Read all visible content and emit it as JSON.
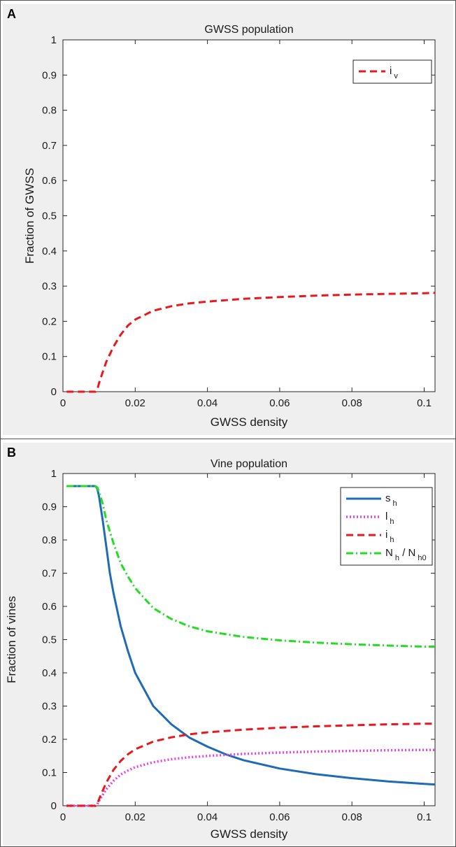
{
  "chart_data": [
    {
      "type": "line",
      "panel_label": "A",
      "title": "GWSS population",
      "xlabel": "GWSS density",
      "ylabel": "Fraction of GWSS",
      "xlim": [
        0,
        0.103
      ],
      "ylim": [
        0,
        1
      ],
      "xticks": [
        "0",
        "0.02",
        "0.04",
        "0.06",
        "0.08",
        "0.1"
      ],
      "yticks": [
        "0",
        "0.1",
        "0.2",
        "0.3",
        "0.4",
        "0.5",
        "0.6",
        "0.7",
        "0.8",
        "0.9",
        "1"
      ],
      "legend_position": "top-right",
      "grid": false,
      "series": [
        {
          "name_main": "i",
          "name_sub": "v",
          "color": "#e8191c",
          "style": "dashed",
          "x": [
            0.001,
            0.009,
            0.0095,
            0.01,
            0.011,
            0.012,
            0.014,
            0.016,
            0.018,
            0.02,
            0.025,
            0.03,
            0.035,
            0.04,
            0.05,
            0.06,
            0.07,
            0.08,
            0.09,
            0.1,
            0.103
          ],
          "y": [
            0,
            0,
            0.005,
            0.025,
            0.055,
            0.085,
            0.128,
            0.162,
            0.188,
            0.205,
            0.23,
            0.243,
            0.251,
            0.256,
            0.264,
            0.269,
            0.273,
            0.276,
            0.278,
            0.28,
            0.281
          ]
        }
      ]
    },
    {
      "type": "line",
      "panel_label": "B",
      "title": "Vine population",
      "xlabel": "GWSS density",
      "ylabel": "Fraction of vines",
      "xlim": [
        0,
        0.103
      ],
      "ylim": [
        0,
        1
      ],
      "xticks": [
        "0",
        "0.02",
        "0.04",
        "0.06",
        "0.08",
        "0.1"
      ],
      "yticks": [
        "0",
        "0.1",
        "0.2",
        "0.3",
        "0.4",
        "0.5",
        "0.6",
        "0.7",
        "0.8",
        "0.9",
        "1"
      ],
      "legend_position": "top-right",
      "grid": false,
      "series": [
        {
          "name_main": "s",
          "name_sub": "h",
          "color": "#1f6bb5",
          "style": "solid",
          "x": [
            0.001,
            0.009,
            0.0095,
            0.01,
            0.011,
            0.012,
            0.013,
            0.014,
            0.016,
            0.018,
            0.02,
            0.025,
            0.03,
            0.035,
            0.04,
            0.045,
            0.05,
            0.06,
            0.07,
            0.08,
            0.09,
            0.1,
            0.103
          ],
          "y": [
            0.962,
            0.962,
            0.955,
            0.93,
            0.86,
            0.78,
            0.7,
            0.64,
            0.54,
            0.465,
            0.4,
            0.3,
            0.245,
            0.205,
            0.178,
            0.155,
            0.137,
            0.112,
            0.095,
            0.083,
            0.073,
            0.066,
            0.064
          ]
        },
        {
          "name_main": "l",
          "name_sub": "h",
          "color": "#e83ee8",
          "style": "dotted",
          "x": [
            0.001,
            0.009,
            0.0095,
            0.01,
            0.011,
            0.012,
            0.014,
            0.016,
            0.018,
            0.02,
            0.025,
            0.03,
            0.035,
            0.04,
            0.05,
            0.06,
            0.07,
            0.08,
            0.09,
            0.1,
            0.103
          ],
          "y": [
            0,
            0,
            0.004,
            0.015,
            0.032,
            0.05,
            0.075,
            0.094,
            0.106,
            0.116,
            0.131,
            0.14,
            0.146,
            0.15,
            0.156,
            0.16,
            0.163,
            0.165,
            0.167,
            0.168,
            0.168
          ]
        },
        {
          "name_main": "i",
          "name_sub": "h",
          "color": "#e8191c",
          "style": "dashed",
          "x": [
            0.001,
            0.009,
            0.0095,
            0.01,
            0.011,
            0.012,
            0.014,
            0.016,
            0.018,
            0.02,
            0.025,
            0.03,
            0.035,
            0.04,
            0.05,
            0.06,
            0.07,
            0.08,
            0.09,
            0.1,
            0.103
          ],
          "y": [
            0,
            0,
            0.005,
            0.02,
            0.045,
            0.07,
            0.108,
            0.135,
            0.155,
            0.17,
            0.193,
            0.206,
            0.215,
            0.221,
            0.229,
            0.235,
            0.239,
            0.242,
            0.245,
            0.247,
            0.247
          ]
        },
        {
          "name_main": "N",
          "name_sub": "h",
          "name_sep": " / ",
          "name_main2": "N",
          "name_sub2": "h0",
          "color": "#22dd22",
          "style": "dashdot",
          "x": [
            0.001,
            0.009,
            0.0095,
            0.01,
            0.011,
            0.012,
            0.014,
            0.016,
            0.018,
            0.02,
            0.025,
            0.03,
            0.035,
            0.04,
            0.05,
            0.06,
            0.07,
            0.08,
            0.09,
            0.1,
            0.103
          ],
          "y": [
            0.962,
            0.962,
            0.958,
            0.945,
            0.91,
            0.86,
            0.79,
            0.73,
            0.69,
            0.655,
            0.595,
            0.562,
            0.54,
            0.525,
            0.508,
            0.498,
            0.491,
            0.486,
            0.482,
            0.479,
            0.479
          ]
        }
      ]
    }
  ]
}
